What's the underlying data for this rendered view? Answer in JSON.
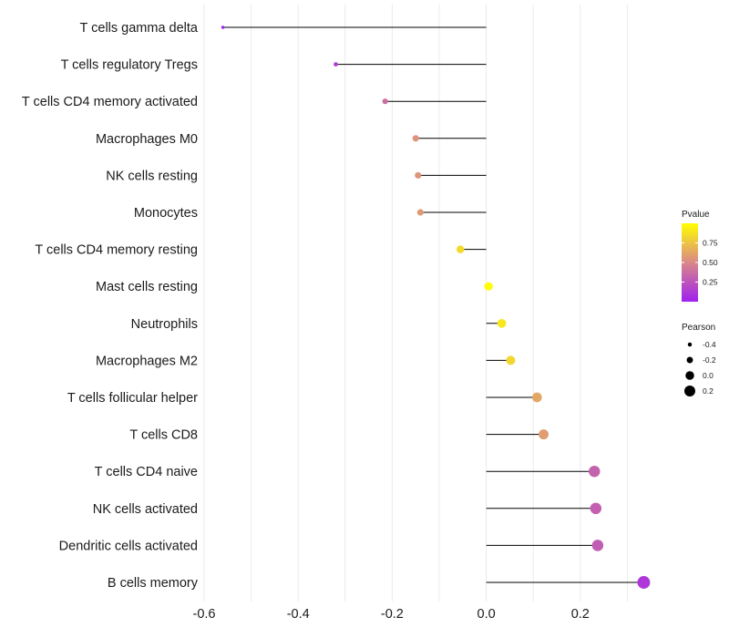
{
  "chart_data": {
    "type": "lollipop",
    "title": "",
    "xlabel": "",
    "ylabel": "",
    "xlim": [
      -0.62,
      0.36
    ],
    "x_ticks": [
      -0.6,
      -0.4,
      -0.2,
      0.0,
      0.2
    ],
    "x_tick_labels": [
      "-0.6",
      "-0.4",
      "-0.2",
      "0.0",
      "0.2"
    ],
    "grid": true,
    "points": [
      {
        "label": "T cells gamma delta",
        "pearson": -0.56,
        "pvalue": 0.02
      },
      {
        "label": "T cells regulatory  Tregs",
        "pearson": -0.32,
        "pvalue": 0.14
      },
      {
        "label": "T cells CD4 memory activated",
        "pearson": -0.215,
        "pvalue": 0.38
      },
      {
        "label": "Macrophages M0",
        "pearson": -0.15,
        "pvalue": 0.55
      },
      {
        "label": "NK cells resting",
        "pearson": -0.145,
        "pvalue": 0.55
      },
      {
        "label": "Monocytes",
        "pearson": -0.14,
        "pvalue": 0.58
      },
      {
        "label": "T cells CD4 memory resting",
        "pearson": -0.055,
        "pvalue": 0.85
      },
      {
        "label": "Mast cells resting",
        "pearson": 0.005,
        "pvalue": 0.99
      },
      {
        "label": "Neutrophils",
        "pearson": 0.033,
        "pvalue": 0.9
      },
      {
        "label": "Macrophages M2",
        "pearson": 0.052,
        "pvalue": 0.83
      },
      {
        "label": "T cells follicular helper",
        "pearson": 0.108,
        "pvalue": 0.63
      },
      {
        "label": "T cells CD8",
        "pearson": 0.122,
        "pvalue": 0.59
      },
      {
        "label": "T cells CD4 naive",
        "pearson": 0.23,
        "pvalue": 0.32
      },
      {
        "label": "NK cells activated",
        "pearson": 0.233,
        "pvalue": 0.31
      },
      {
        "label": "Dendritic cells activated",
        "pearson": 0.237,
        "pvalue": 0.3
      },
      {
        "label": "B cells memory",
        "pearson": 0.335,
        "pvalue": 0.11
      }
    ],
    "legend_color": {
      "title": "Pvalue",
      "ticks": [
        0.75,
        0.5,
        0.25
      ],
      "tick_labels": [
        "0.75",
        "0.50",
        "0.25"
      ],
      "range": [
        0.0,
        1.0
      ],
      "low_color": "#a020f0",
      "mid_color": "#d98888",
      "high_color": "#ffff00",
      "placement": "right"
    },
    "legend_size": {
      "title": "Pearson",
      "values": [
        -0.4,
        -0.2,
        0.0,
        0.2
      ],
      "labels": [
        "-0.4",
        "-0.2",
        "0.0",
        "0.2"
      ],
      "placement": "right"
    }
  }
}
